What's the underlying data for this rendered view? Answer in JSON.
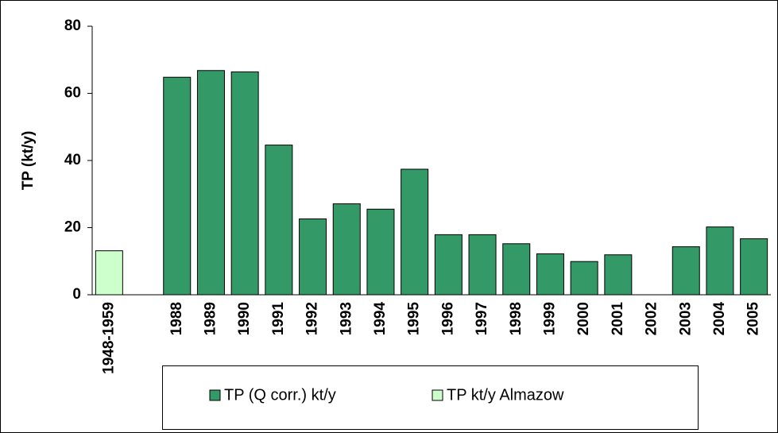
{
  "chart_data": {
    "type": "bar",
    "ylabel": "TP (kt/y)",
    "categories": [
      "1948-1959",
      null,
      "1988",
      "1989",
      "1990",
      "1991",
      "1992",
      "1993",
      "1994",
      "1995",
      "1996",
      "1997",
      "1998",
      "1999",
      "2000",
      "2001",
      "2002",
      "2003",
      "2004",
      "2005"
    ],
    "series": [
      {
        "name": "TP (Q corr.) kt/y",
        "color": "#339966",
        "values": [
          null,
          null,
          64.8,
          66.8,
          66.4,
          44.6,
          22.6,
          27.1,
          25.5,
          37.4,
          17.9,
          17.9,
          15.2,
          12.2,
          9.9,
          11.9,
          null,
          14.3,
          20.2,
          16.7
        ]
      },
      {
        "name": "TP kt/y Almazow",
        "color": "#ccffcc",
        "values": [
          13.1,
          null,
          null,
          null,
          null,
          null,
          null,
          null,
          null,
          null,
          null,
          null,
          null,
          null,
          null,
          null,
          null,
          null,
          null,
          null
        ]
      }
    ],
    "ylim": [
      0,
      80
    ],
    "yticks": [
      0,
      20,
      40,
      60,
      80
    ],
    "grid": false,
    "legend": "bottom"
  }
}
